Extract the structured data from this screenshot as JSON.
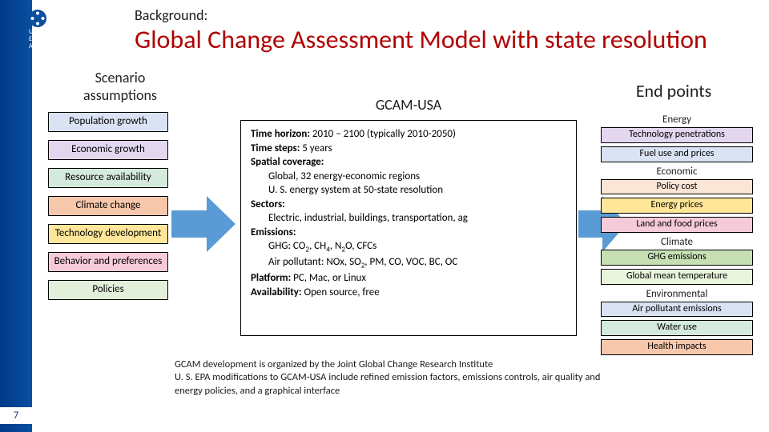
{
  "page_number": "7",
  "epa": {
    "abbr": "EPA",
    "full": "United States\nEnvironmental Protection\nAgency"
  },
  "background_label": "Background:",
  "title": "Global Change Assessment Model with state resolution",
  "scenario": {
    "heading": "Scenario assumptions",
    "items": [
      {
        "label": "Population growth",
        "color": "c-lightblue"
      },
      {
        "label": "Economic growth",
        "color": "c-lavender"
      },
      {
        "label": "Resource availability",
        "color": "c-mint"
      },
      {
        "label": "Climate change",
        "color": "c-salmon"
      },
      {
        "label": "Technology development",
        "color": "c-gold"
      },
      {
        "label": "Behavior and preferences",
        "color": "c-rose"
      },
      {
        "label": "Policies",
        "color": "c-sage"
      }
    ]
  },
  "arrow_color": "#5b9bd5",
  "gcam": {
    "heading": "GCAM-USA",
    "lines": [
      {
        "b": "Time horizon:",
        "t": " 2010 – 2100 (typically 2010-2050)"
      },
      {
        "b": "Time steps:",
        "t": " 5 years"
      },
      {
        "b": "Spatial coverage:",
        "t": ""
      },
      {
        "indent": true,
        "t": "Global, 32 energy-economic regions"
      },
      {
        "indent": true,
        "t": "U. S. energy system at 50-state resolution"
      },
      {
        "b": "Sectors:",
        "t": ""
      },
      {
        "indent": true,
        "t": "Electric, industrial, buildings, transportation, ag"
      },
      {
        "b": "Emissions:",
        "t": ""
      },
      {
        "indent": true,
        "html": "GHG: CO<sub>2</sub>, CH<sub>4</sub>, N<sub>2</sub>O, CFCs"
      },
      {
        "indent": true,
        "html": "Air pollutant: NOx, SO<sub>2</sub>, PM, CO, VOC, BC, OC"
      },
      {
        "b": "Platform:",
        "t": " PC, Mac, or Linux"
      },
      {
        "b": "Availability:",
        "t": " Open source, free"
      }
    ]
  },
  "footnote": {
    "line1": "GCAM development is organized by the Joint Global Change Research Institute",
    "line2": "U. S. EPA modifications to GCAM-USA include refined emission factors, emissions controls, air quality and energy policies, and a graphical interface"
  },
  "endpoints": {
    "heading": "End points",
    "groups": [
      {
        "cat": "Energy",
        "items": [
          {
            "label": "Technology penetrations",
            "color": "c-lavender"
          },
          {
            "label": "Fuel use and prices",
            "color": "c-lightblue"
          }
        ]
      },
      {
        "cat": "Economic",
        "items": [
          {
            "label": "Policy cost",
            "color": "c-peach"
          },
          {
            "label": "Energy prices",
            "color": "c-gold"
          }
        ]
      },
      {
        "cat": "",
        "items": [
          {
            "label": "Land and food prices",
            "color": "c-rose"
          }
        ]
      },
      {
        "cat": "Climate",
        "items": [
          {
            "label": "GHG emissions",
            "color": "c-green"
          },
          {
            "label": "Global mean temperature",
            "color": "c-lightgreen"
          }
        ]
      },
      {
        "cat": "Environmental",
        "items": [
          {
            "label": "Air pollutant emissions",
            "color": "c-lightblue"
          },
          {
            "label": "Water use",
            "color": "c-mint"
          },
          {
            "label": "Health impacts",
            "color": "c-salmon"
          }
        ]
      }
    ]
  }
}
